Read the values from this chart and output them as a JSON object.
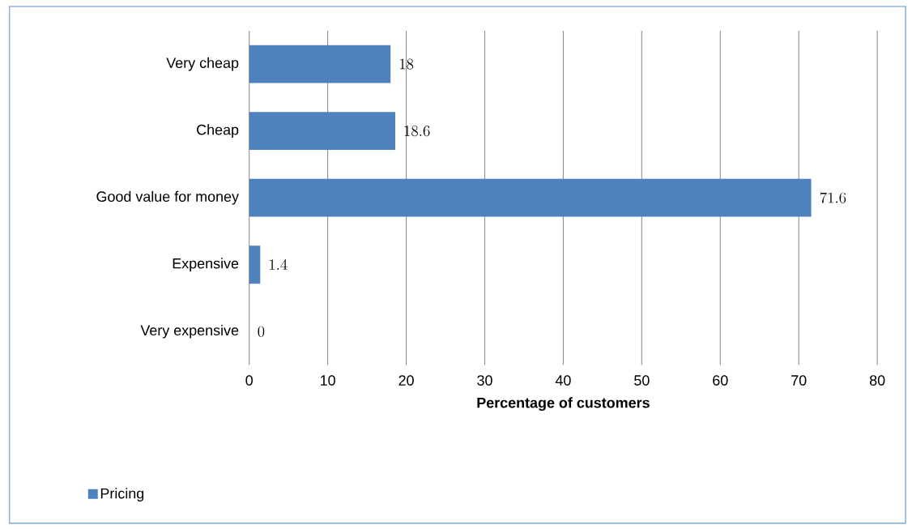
{
  "chart_data": {
    "type": "bar",
    "orientation": "horizontal",
    "xlabel": "Percentage of customers",
    "categories": [
      "Very cheap",
      "Cheap",
      "Good value for money",
      "Expensive",
      "Very expensive"
    ],
    "series": [
      {
        "name": "Pricing",
        "color": "#4f81bd",
        "values": [
          18,
          18.6,
          71.6,
          1.4,
          0
        ]
      }
    ],
    "xlim": [
      0,
      80
    ],
    "xticks": [
      0,
      10,
      20,
      30,
      40,
      50,
      60,
      70,
      80
    ],
    "grid": "x",
    "legend": "bottom",
    "data_labels": true
  }
}
